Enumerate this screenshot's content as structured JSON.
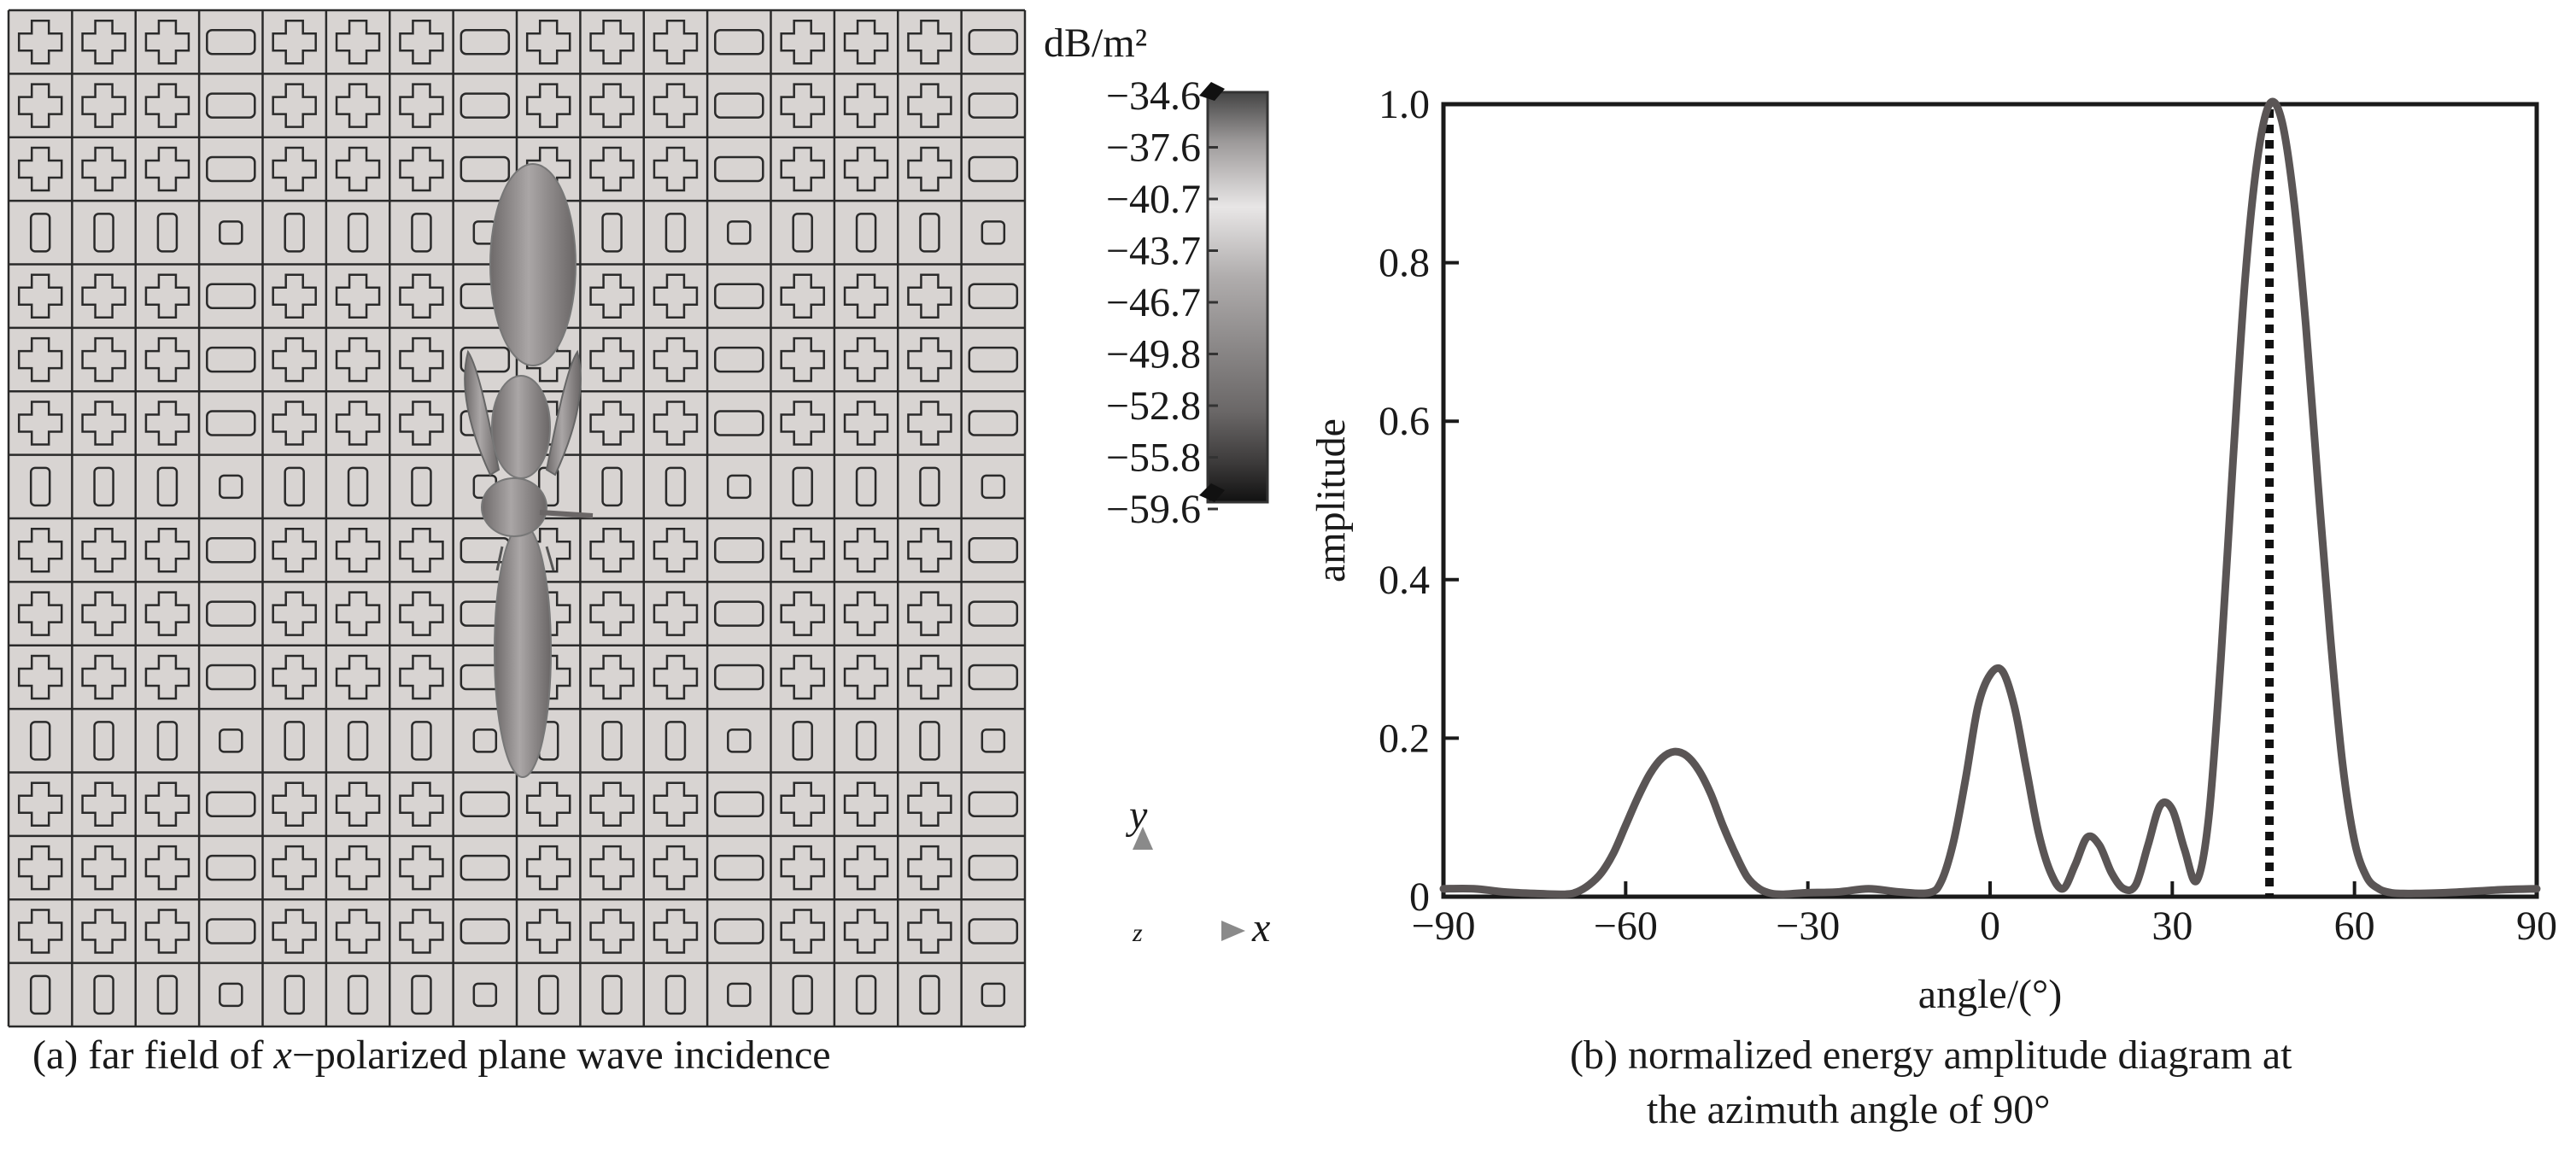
{
  "panel_a": {
    "caption_prefix": "(a) far field of ",
    "caption_italic": "x",
    "caption_suffix": "−polarized plane wave incidence",
    "colorbar": {
      "unit": "dB/m²",
      "ticks": [
        "−34.6",
        "−37.6",
        "−40.7",
        "−43.7",
        "−46.7",
        "−49.8",
        "−52.8",
        "−55.8",
        "−59.6"
      ]
    },
    "axes_triad": {
      "y_label": "y",
      "x_label": "x",
      "z_label": "z"
    },
    "colors": {
      "surface": "#d8d4d2",
      "grid_line": "#2a2a2a",
      "lobe": "#8f8b8b"
    }
  },
  "panel_b": {
    "caption_line1": "(b) normalized energy amplitude diagram at",
    "caption_line2": "the azimuth angle of 90°"
  },
  "chart_data": {
    "type": "line",
    "xlabel": "angle/(°)",
    "ylabel": "amplitude",
    "xlim": [
      -90,
      90
    ],
    "ylim": [
      0,
      1.0
    ],
    "x_ticks": [
      -90,
      -60,
      -30,
      0,
      30,
      60,
      90
    ],
    "x_tick_labels": [
      "−90",
      "−60",
      "−30",
      "0",
      "30",
      "60",
      "90"
    ],
    "y_ticks": [
      0,
      0.2,
      0.4,
      0.6,
      0.8,
      1.0
    ],
    "y_tick_labels": [
      "0",
      "0.2",
      "0.4",
      "0.6",
      "0.8",
      "1.0"
    ],
    "grid": false,
    "series": [
      {
        "color": "#5a5555",
        "x": [
          -90,
          -85,
          -80,
          -75,
          -70,
          -68,
          -66,
          -64,
          -62,
          -60,
          -58,
          -56,
          -54,
          -52,
          -50,
          -48,
          -46,
          -44,
          -42,
          -40,
          -38,
          -36,
          -34,
          -32,
          -30,
          -25,
          -20,
          -15,
          -10,
          -8,
          -6,
          -4,
          -2,
          0,
          2,
          4,
          6,
          8,
          10,
          12,
          14,
          16,
          18,
          20,
          22,
          24,
          26,
          28,
          30,
          32,
          34,
          36,
          38,
          40,
          42,
          44,
          46,
          48,
          50,
          52,
          54,
          56,
          58,
          60,
          62,
          64,
          66,
          68,
          70,
          75,
          80,
          85,
          90
        ],
        "y": [
          0.01,
          0.01,
          0.006,
          0.004,
          0.003,
          0.006,
          0.015,
          0.03,
          0.055,
          0.09,
          0.125,
          0.155,
          0.175,
          0.183,
          0.178,
          0.16,
          0.13,
          0.09,
          0.055,
          0.025,
          0.01,
          0.004,
          0.003,
          0.004,
          0.005,
          0.006,
          0.01,
          0.006,
          0.005,
          0.02,
          0.07,
          0.15,
          0.24,
          0.28,
          0.285,
          0.24,
          0.16,
          0.08,
          0.03,
          0.01,
          0.04,
          0.075,
          0.065,
          0.03,
          0.01,
          0.015,
          0.065,
          0.115,
          0.11,
          0.06,
          0.02,
          0.1,
          0.3,
          0.55,
          0.78,
          0.93,
          1.0,
          0.98,
          0.88,
          0.72,
          0.52,
          0.33,
          0.17,
          0.07,
          0.025,
          0.01,
          0.005,
          0.004,
          0.004,
          0.005,
          0.007,
          0.009,
          0.01
        ]
      }
    ],
    "reference_line": {
      "x": 46,
      "style": "dotted",
      "color": "#111111"
    }
  }
}
